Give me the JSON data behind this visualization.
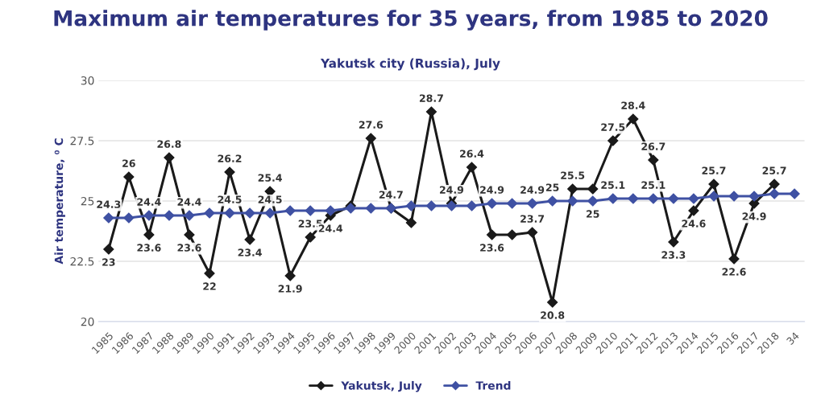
{
  "chart_data": {
    "type": "line",
    "title": "Maximum air temperatures for 35 years, from 1985 to 2020",
    "subtitle": "Yakutsk city (Russia), July",
    "ylabel": "Air temperature, ⁰ C",
    "categories": [
      "1985",
      "1986",
      "1987",
      "1988",
      "1989",
      "1990",
      "1991",
      "1992",
      "1993",
      "1994",
      "1995",
      "1996",
      "1997",
      "1998",
      "1999",
      "2000",
      "2001",
      "2002",
      "2003",
      "2004",
      "2005",
      "2006",
      "2007",
      "2008",
      "2009",
      "2010",
      "2011",
      "2012",
      "2013",
      "2014",
      "2015",
      "2016",
      "2017",
      "2018",
      "34"
    ],
    "series": [
      {
        "name": "Yakutsk, July",
        "color": "#1a1a1a",
        "values": [
          23,
          26,
          23.6,
          26.8,
          23.6,
          22,
          26.2,
          23.4,
          25.4,
          21.9,
          23.5,
          24.4,
          24.8,
          27.6,
          24.7,
          24.1,
          28.7,
          24.9,
          26.4,
          23.6,
          23.6,
          23.7,
          20.8,
          25.5,
          25.5,
          27.5,
          28.4,
          26.7,
          23.3,
          24.6,
          25.7,
          22.6,
          24.9,
          25.7,
          null
        ],
        "value_labels": [
          "23",
          "26",
          "23.6",
          "26.8",
          "23.6",
          "22",
          "26.2",
          "23.4",
          "25.4",
          "21.9",
          "23.5",
          "24.4",
          null,
          "27.6",
          "24.7",
          null,
          "28.7",
          "24.9",
          "26.4",
          "23.6",
          null,
          "23.7",
          "20.8",
          "25.5",
          null,
          "27.5",
          "28.4",
          "26.7",
          "23.3",
          "24.6",
          "25.7",
          "22.6",
          "24.9",
          "25.7",
          null
        ]
      },
      {
        "name": "Trend",
        "color": "#3f51a3",
        "values": [
          24.3,
          24.3,
          24.4,
          24.4,
          24.4,
          24.5,
          24.5,
          24.5,
          24.5,
          24.6,
          24.6,
          24.6,
          24.7,
          24.7,
          24.7,
          24.8,
          24.8,
          24.8,
          24.8,
          24.9,
          24.9,
          24.9,
          25,
          25,
          25,
          25.1,
          25.1,
          25.1,
          25.1,
          25.1,
          25.2,
          25.2,
          25.2,
          25.3,
          25.3
        ],
        "value_labels": [
          "24.3",
          null,
          "24.4",
          null,
          "24.4",
          null,
          "24.5",
          null,
          "24.5",
          null,
          null,
          null,
          null,
          null,
          null,
          null,
          null,
          null,
          null,
          "24.9",
          null,
          "24.9",
          "25",
          null,
          "25",
          "25.1",
          null,
          "25.1",
          null,
          null,
          null,
          null,
          null,
          null,
          null
        ]
      }
    ],
    "ylim": [
      20,
      30
    ],
    "yticks": [
      20,
      {
        "value": 22.5,
        "label": "22.5"
      },
      25,
      {
        "value": 27.5,
        "label": "27.5"
      },
      30
    ],
    "grid": "y",
    "legend": "bottom",
    "marker": "diamond",
    "line_style": "solid"
  }
}
